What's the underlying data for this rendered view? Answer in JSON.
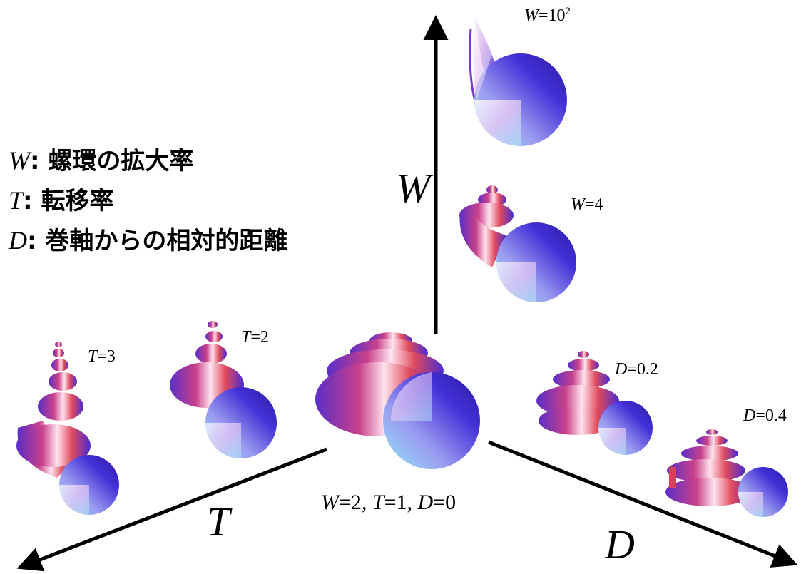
{
  "axes": {
    "W": {
      "name": "W"
    },
    "T": {
      "name": "T"
    },
    "D": {
      "name": "D"
    }
  },
  "legend": [
    {
      "symbol": "W",
      "text": ": 螺環の拡大率"
    },
    {
      "symbol": "T",
      "text": ": 転移率"
    },
    {
      "symbol": "D",
      "text": ": 巻軸からの相対的距離"
    }
  ],
  "shells": {
    "base": {
      "w_sym": "W",
      "w_val": "=2, ",
      "t_sym": "T",
      "t_val": "=1, ",
      "d_sym": "D",
      "d_val": "=0"
    },
    "w100": {
      "sym": "W",
      "val": "=10",
      "sup": "2"
    },
    "w4": {
      "sym": "W",
      "val": "=4"
    },
    "t3": {
      "sym": "T",
      "val": "=3"
    },
    "t2": {
      "sym": "T",
      "val": "=2"
    },
    "d02": {
      "sym": "D",
      "val": "=0.2"
    },
    "d04": {
      "sym": "D",
      "val": "=0.4"
    }
  },
  "colors": {
    "shell_red": "#d8405a",
    "shell_blue": "#3a2fd6",
    "shell_light": "#f6e6f2",
    "shell_cyan": "#7ad8f0",
    "axis": "#000000"
  }
}
